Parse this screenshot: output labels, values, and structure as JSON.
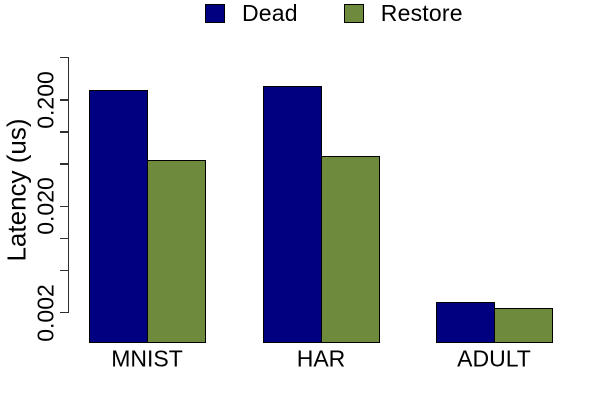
{
  "legend": {
    "items": [
      {
        "label": "Dead",
        "color": "#000080"
      },
      {
        "label": "Restore",
        "color": "#6E8B3D"
      }
    ]
  },
  "chart_data": {
    "type": "bar",
    "title": "",
    "xlabel": "",
    "ylabel": "Latency (us)",
    "y_scale": "log10",
    "categories": [
      "MNIST",
      "HAR",
      "ADULT"
    ],
    "series": [
      {
        "name": "Dead",
        "color": "#000080",
        "values": [
          0.25,
          0.27,
          0.0025
        ]
      },
      {
        "name": "Restore",
        "color": "#6E8B3D",
        "values": [
          0.054,
          0.059,
          0.0022
        ]
      }
    ],
    "y_ticks": [
      0.002,
      0.005,
      0.01,
      0.02,
      0.05,
      0.1,
      0.2,
      0.5
    ],
    "y_tick_labels": [
      "0.002",
      "",
      "",
      "0.020",
      "",
      "",
      "0.200",
      ""
    ],
    "ylim": [
      0.002,
      0.5
    ],
    "grid": false,
    "legend_position": "top",
    "bar_border_color": "#000000",
    "background_color": "#FFFFFF"
  }
}
